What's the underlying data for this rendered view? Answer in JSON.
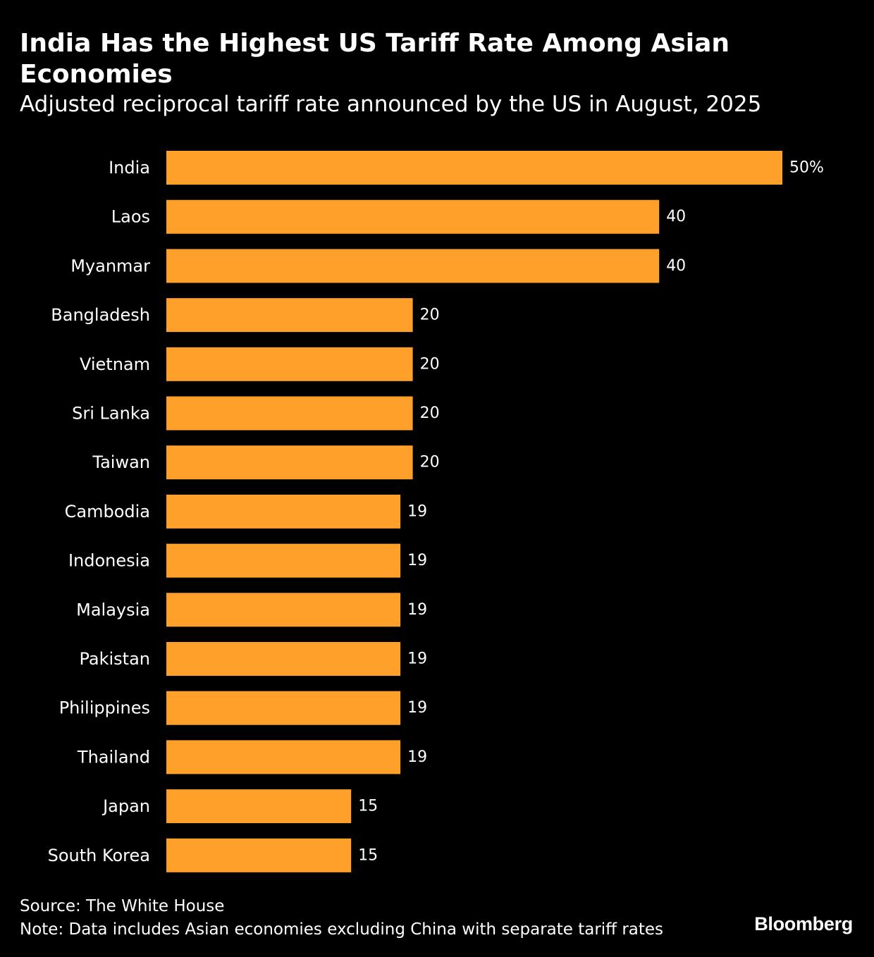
{
  "colors": {
    "background": "#000000",
    "bar": "#FFA02A",
    "text": "#FFFFFF"
  },
  "chart_data": {
    "type": "bar",
    "orientation": "horizontal",
    "title": "India Has the Highest US Tariff Rate Among Asian Economies",
    "subtitle": "Adjusted reciprocal tariff rate announced by the US in August, 2025",
    "categories": [
      "India",
      "Laos",
      "Myanmar",
      "Bangladesh",
      "Vietnam",
      "Sri Lanka",
      "Taiwan",
      "Cambodia",
      "Indonesia",
      "Malaysia",
      "Pakistan",
      "Philippines",
      "Thailand",
      "Japan",
      "South Korea"
    ],
    "values": [
      50,
      40,
      40,
      20,
      20,
      20,
      20,
      19,
      19,
      19,
      19,
      19,
      19,
      15,
      15
    ],
    "value_labels": [
      "50%",
      "40",
      "40",
      "20",
      "20",
      "20",
      "20",
      "19",
      "19",
      "19",
      "19",
      "19",
      "19",
      "15",
      "15"
    ],
    "xlabel": "",
    "ylabel": "",
    "xlim": [
      0,
      50
    ],
    "unit": "%",
    "grid": false
  },
  "footer": {
    "source": "Source: The White House",
    "note": "Note: Data includes Asian economies excluding China with separate tariff rates",
    "brand": "Bloomberg"
  }
}
